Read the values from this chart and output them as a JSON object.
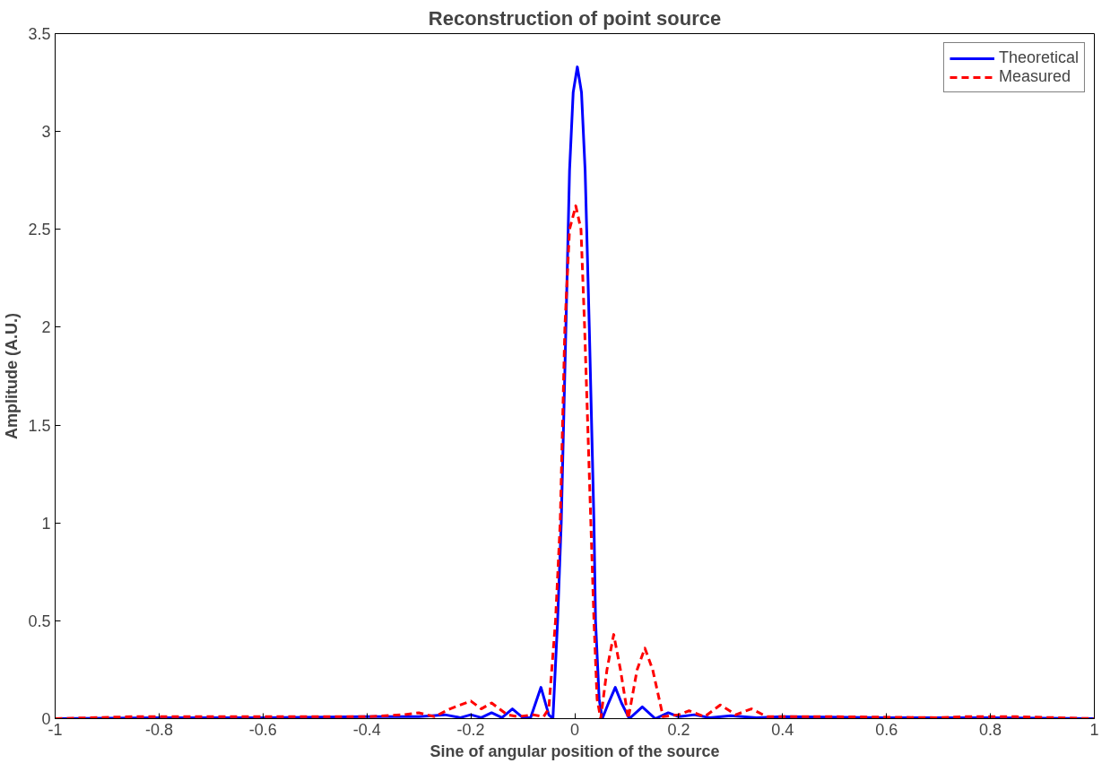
{
  "chart_data": {
    "type": "line",
    "title": "Reconstruction of point source",
    "xlabel": "Sine of angular position of the source",
    "ylabel": "Amplitude (A.U.)",
    "xlim": [
      -1,
      1
    ],
    "xticks": [
      -1,
      -0.8,
      -0.6,
      -0.4,
      -0.2,
      0,
      0.2,
      0.4,
      0.6,
      0.8,
      1
    ],
    "ylim": [
      0,
      3.5
    ],
    "yticks": [
      0,
      0.5,
      1,
      1.5,
      2,
      2.5,
      3,
      3.5
    ],
    "grid": false,
    "legend": "top right",
    "series": [
      {
        "name": "Theoretical",
        "color": "#0000ff",
        "line_style": "solid",
        "x": [
          -1,
          -0.8,
          -0.6,
          -0.4,
          -0.3,
          -0.25,
          -0.22,
          -0.2,
          -0.18,
          -0.16,
          -0.14,
          -0.12,
          -0.1,
          -0.085,
          -0.065,
          -0.05,
          -0.042,
          -0.033,
          -0.026,
          -0.017,
          -0.01,
          -0.003,
          0.005,
          0.013,
          0.02,
          0.028,
          0.037,
          0.04,
          0.047,
          0.053,
          0.065,
          0.078,
          0.09,
          0.105,
          0.13,
          0.155,
          0.18,
          0.2,
          0.23,
          0.26,
          0.3,
          0.35,
          0.4,
          0.6,
          0.8,
          1
        ],
        "values": [
          0,
          0.005,
          0.005,
          0.01,
          0.01,
          0.02,
          0.005,
          0.02,
          0.005,
          0.03,
          0.005,
          0.05,
          0.005,
          0.005,
          0.16,
          0.02,
          0,
          0.5,
          1,
          2,
          2.8,
          3.2,
          3.33,
          3.2,
          2.8,
          2,
          1,
          0.5,
          0.1,
          0,
          0.08,
          0.16,
          0.08,
          0,
          0.06,
          0,
          0.03,
          0.01,
          0.02,
          0.005,
          0.015,
          0.005,
          0.01,
          0.005,
          0.005,
          0
        ]
      },
      {
        "name": "Measured",
        "color": "#ff0000",
        "line_style": "dashed",
        "x": [
          -1,
          -0.85,
          -0.7,
          -0.5,
          -0.4,
          -0.33,
          -0.3,
          -0.27,
          -0.24,
          -0.2,
          -0.18,
          -0.16,
          -0.13,
          -0.11,
          -0.08,
          -0.06,
          -0.05,
          -0.037,
          -0.028,
          -0.019,
          -0.01,
          0.002,
          0.012,
          0.019,
          0.031,
          0.037,
          0.043,
          0.05,
          0.062,
          0.075,
          0.088,
          0.103,
          0.12,
          0.135,
          0.15,
          0.17,
          0.2,
          0.22,
          0.25,
          0.28,
          0.31,
          0.34,
          0.37,
          0.5,
          0.7,
          0.75,
          0.85,
          1
        ],
        "values": [
          0,
          0.01,
          0.01,
          0.01,
          0.01,
          0.02,
          0.03,
          0.01,
          0.05,
          0.09,
          0.05,
          0.08,
          0.02,
          0.01,
          0.02,
          0.01,
          0.05,
          0.5,
          1,
          2,
          2.5,
          2.62,
          2.5,
          2,
          1,
          0.5,
          0.1,
          0,
          0.25,
          0.43,
          0.25,
          0,
          0.25,
          0.36,
          0.25,
          0.01,
          0.02,
          0.04,
          0.01,
          0.07,
          0.02,
          0.05,
          0.01,
          0.01,
          0.005,
          0.01,
          0.01,
          0
        ]
      }
    ]
  }
}
